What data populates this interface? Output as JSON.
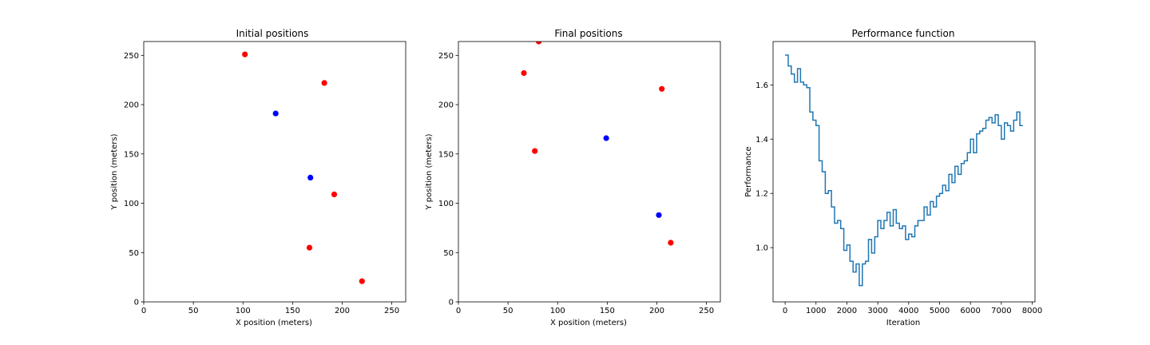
{
  "chart_data": [
    {
      "type": "scatter",
      "title": "Initial positions",
      "xlabel": "X position (meters)",
      "ylabel": "Y position (meters)",
      "xlim": [
        0,
        264
      ],
      "ylim": [
        0,
        264
      ],
      "xticks": [
        0,
        50,
        100,
        150,
        200,
        250
      ],
      "yticks": [
        0,
        50,
        100,
        150,
        200,
        250
      ],
      "grid": false,
      "series": [
        {
          "color": "#ff0000",
          "points": [
            [
              102,
              251
            ],
            [
              182,
              222
            ],
            [
              192,
              109
            ],
            [
              167,
              55
            ],
            [
              220,
              21
            ]
          ]
        },
        {
          "color": "#0000ff",
          "points": [
            [
              133,
              191
            ],
            [
              168,
              126
            ]
          ]
        }
      ]
    },
    {
      "type": "scatter",
      "title": "Final positions",
      "xlabel": "X position (meters)",
      "ylabel": "Y position (meters)",
      "xlim": [
        0,
        264
      ],
      "ylim": [
        0,
        264
      ],
      "xticks": [
        0,
        50,
        100,
        150,
        200,
        250
      ],
      "yticks": [
        0,
        50,
        100,
        150,
        200,
        250
      ],
      "grid": false,
      "series": [
        {
          "color": "#ff0000",
          "points": [
            [
              81,
              264
            ],
            [
              66,
              232
            ],
            [
              77,
              153
            ],
            [
              205,
              216
            ],
            [
              214,
              60
            ]
          ]
        },
        {
          "color": "#0000ff",
          "points": [
            [
              149,
              166
            ],
            [
              202,
              88
            ]
          ]
        }
      ]
    },
    {
      "type": "line",
      "title": "Performance function",
      "xlabel": "Iteration",
      "ylabel": "Performance",
      "xlim": [
        -390,
        8090
      ],
      "ylim": [
        0.8,
        1.76
      ],
      "xticks": [
        0,
        1000,
        2000,
        3000,
        4000,
        5000,
        6000,
        7000,
        8000
      ],
      "yticks": [
        1.0,
        1.2,
        1.4,
        1.6
      ],
      "ytick_labels": [
        "1.0",
        "1.2",
        "1.4",
        "1.6"
      ],
      "grid": false,
      "step": true,
      "series": [
        {
          "color": "#1f77b4",
          "x": [
            0,
            100,
            200,
            300,
            400,
            500,
            600,
            700,
            800,
            900,
            1000,
            1100,
            1200,
            1300,
            1400,
            1500,
            1600,
            1700,
            1800,
            1900,
            2000,
            2100,
            2200,
            2300,
            2400,
            2500,
            2600,
            2700,
            2800,
            2900,
            3000,
            3100,
            3200,
            3300,
            3400,
            3500,
            3600,
            3700,
            3800,
            3900,
            4000,
            4100,
            4200,
            4300,
            4400,
            4500,
            4600,
            4700,
            4800,
            4900,
            5000,
            5100,
            5200,
            5300,
            5400,
            5500,
            5600,
            5700,
            5800,
            5900,
            6000,
            6100,
            6200,
            6300,
            6400,
            6500,
            6600,
            6700,
            6800,
            6900,
            7000,
            7100,
            7200,
            7300,
            7400,
            7500,
            7600,
            7700
          ],
          "y": [
            1.71,
            1.67,
            1.64,
            1.61,
            1.66,
            1.61,
            1.6,
            1.59,
            1.5,
            1.47,
            1.45,
            1.32,
            1.28,
            1.2,
            1.21,
            1.15,
            1.09,
            1.1,
            1.07,
            0.99,
            1.01,
            0.95,
            0.91,
            0.94,
            0.86,
            0.94,
            0.95,
            1.03,
            0.98,
            1.04,
            1.1,
            1.07,
            1.1,
            1.13,
            1.08,
            1.14,
            1.09,
            1.07,
            1.08,
            1.03,
            1.05,
            1.04,
            1.08,
            1.1,
            1.1,
            1.15,
            1.12,
            1.17,
            1.15,
            1.19,
            1.2,
            1.23,
            1.21,
            1.27,
            1.24,
            1.3,
            1.27,
            1.31,
            1.32,
            1.35,
            1.4,
            1.35,
            1.42,
            1.43,
            1.44,
            1.47,
            1.48,
            1.46,
            1.49,
            1.45,
            1.4,
            1.46,
            1.45,
            1.43,
            1.47,
            1.5,
            1.45,
            1.45
          ]
        }
      ]
    }
  ]
}
